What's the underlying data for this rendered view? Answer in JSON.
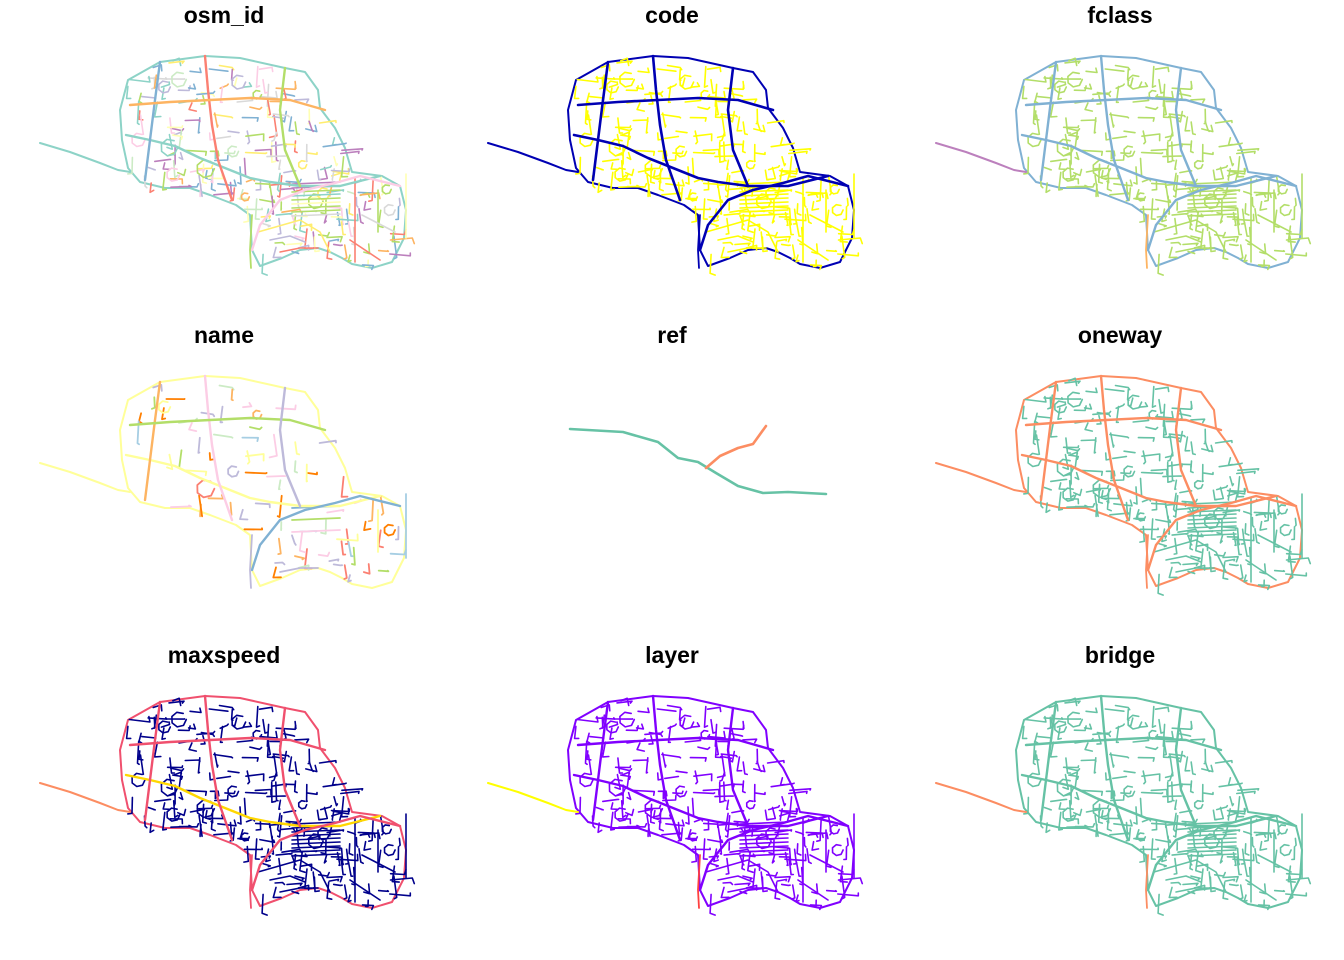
{
  "panels": [
    {
      "title": "osm_id",
      "style": "random",
      "palette": [
        "#8dd3c7",
        "#fb8072",
        "#80b1d3",
        "#fdb462",
        "#b3de69",
        "#fccde5",
        "#bebada",
        "#ffed6f",
        "#bc80bd",
        "#ccebc5",
        "#ffffb3",
        "#d9d9d9"
      ]
    },
    {
      "title": "code",
      "style": "code",
      "palette": [
        "#0000b3",
        "#ffff00"
      ]
    },
    {
      "title": "fclass",
      "style": "fclass",
      "palette": [
        "#b3de69",
        "#bebada",
        "#80b1d3",
        "#d9d9d9",
        "#fb8072",
        "#fdb462",
        "#bc80bd"
      ]
    },
    {
      "title": "name",
      "style": "name",
      "palette": [
        "#ffff99",
        "#fccde5",
        "#fdb462",
        "#b3de69",
        "#bebada",
        "#80b1d3",
        "#fb8072",
        "#ff7f00",
        "#ccebc5",
        "#a6cee3"
      ]
    },
    {
      "title": "ref",
      "style": "ref",
      "palette": [
        "#66c2a5",
        "#fc8d62"
      ]
    },
    {
      "title": "oneway",
      "style": "oneway",
      "palette": [
        "#66c2a5",
        "#fc8d62"
      ]
    },
    {
      "title": "maxspeed",
      "style": "maxspeed",
      "palette": [
        "#00008b",
        "#f0506e",
        "#ffd700",
        "#fc8d62"
      ]
    },
    {
      "title": "layer",
      "style": "layer",
      "palette": [
        "#8000ff",
        "#ffff00",
        "#ff4040"
      ]
    },
    {
      "title": "bridge",
      "style": "bridge",
      "palette": [
        "#66c2a5",
        "#fc8d62"
      ]
    }
  ]
}
